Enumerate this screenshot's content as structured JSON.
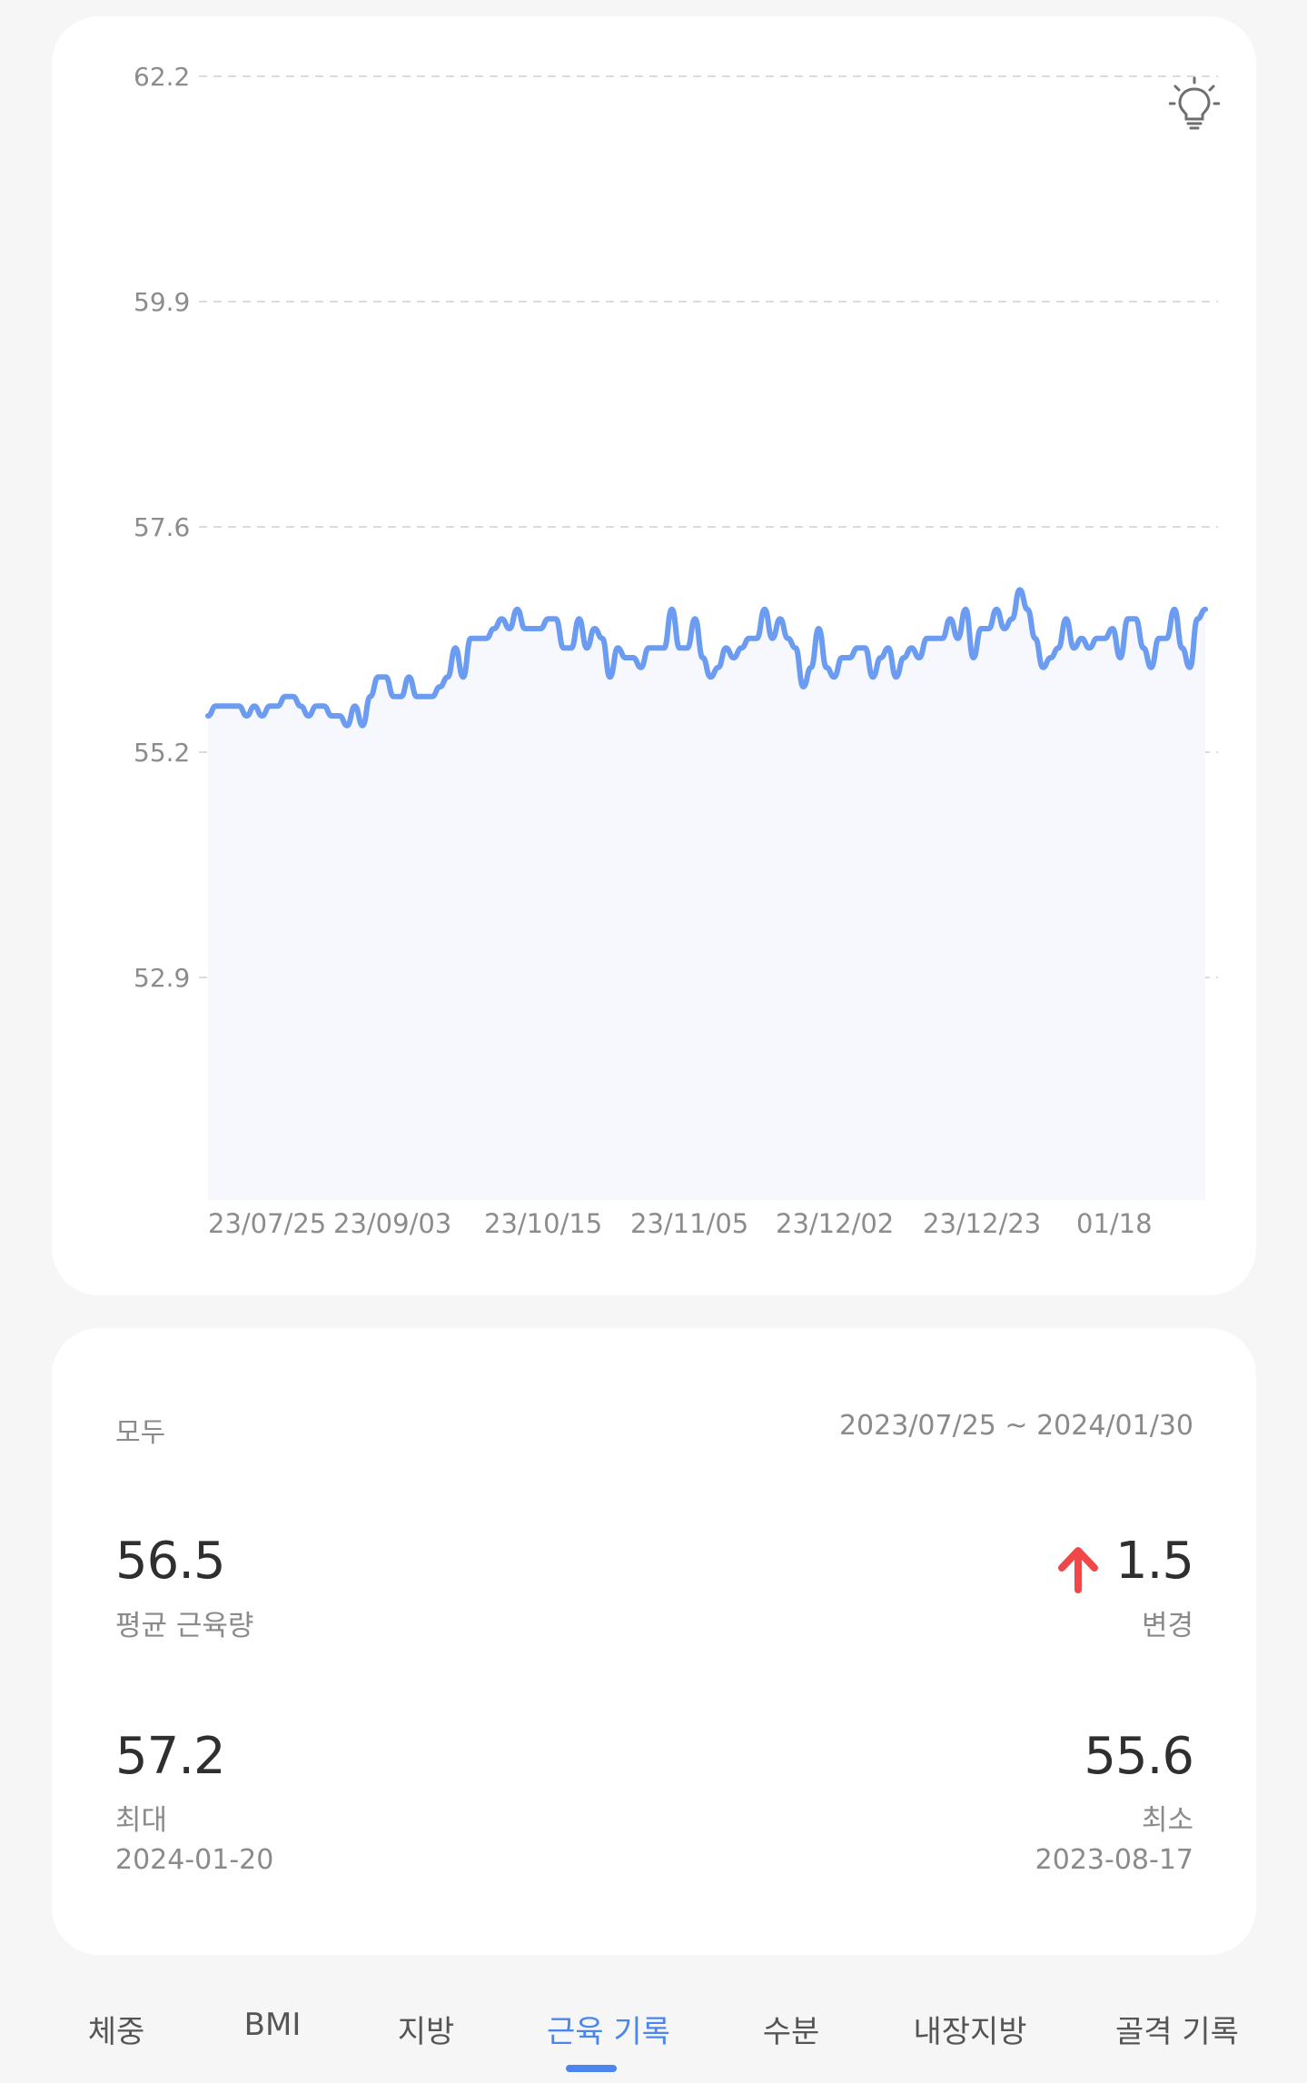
{
  "chart_data": {
    "type": "area",
    "title": "",
    "xlabel": "",
    "ylabel": "",
    "ylim": [
      50.6,
      62.2
    ],
    "y_ticks": [
      "62.2",
      "59.9",
      "57.6",
      "55.2",
      "52.9"
    ],
    "x_tick_labels": [
      "23/07/25",
      "23/09/03",
      "23/10/15",
      "23/11/05",
      "23/12/02",
      "23/12/23",
      "01/18"
    ],
    "series": [
      {
        "color": "#6b9cf2",
        "values": [
          55.6,
          55.7,
          55.7,
          55.7,
          55.7,
          55.6,
          55.7,
          55.6,
          55.7,
          55.7,
          55.8,
          55.8,
          55.7,
          55.6,
          55.7,
          55.7,
          55.6,
          55.6,
          55.5,
          55.7,
          55.5,
          55.8,
          56.0,
          56.0,
          55.8,
          55.8,
          56.0,
          55.8,
          55.8,
          55.8,
          55.9,
          56.0,
          56.3,
          56.0,
          56.4,
          56.4,
          56.4,
          56.5,
          56.6,
          56.5,
          56.7,
          56.5,
          56.5,
          56.5,
          56.6,
          56.6,
          56.3,
          56.3,
          56.6,
          56.3,
          56.5,
          56.4,
          56.0,
          56.3,
          56.2,
          56.2,
          56.1,
          56.3,
          56.3,
          56.3,
          56.7,
          56.3,
          56.3,
          56.6,
          56.2,
          56.0,
          56.1,
          56.3,
          56.2,
          56.3,
          56.4,
          56.4,
          56.7,
          56.4,
          56.6,
          56.4,
          56.3,
          55.9,
          56.1,
          56.5,
          56.1,
          56.0,
          56.2,
          56.2,
          56.3,
          56.3,
          56.0,
          56.2,
          56.3,
          56.0,
          56.2,
          56.3,
          56.2,
          56.4,
          56.4,
          56.4,
          56.6,
          56.4,
          56.7,
          56.2,
          56.5,
          56.5,
          56.7,
          56.5,
          56.6,
          56.9,
          56.7,
          56.4,
          56.1,
          56.2,
          56.3,
          56.6,
          56.3,
          56.4,
          56.3,
          56.4,
          56.4,
          56.5,
          56.2,
          56.6,
          56.6,
          56.3,
          56.1,
          56.4,
          56.4,
          56.7,
          56.3,
          56.1,
          56.6,
          56.7
        ]
      }
    ]
  },
  "stats": {
    "range_label": "모두",
    "date_range": "2023/07/25 ~ 2024/01/30",
    "average": {
      "value": "56.5",
      "label": "평균 근육량"
    },
    "change": {
      "value": "1.5",
      "label": "변경",
      "direction": "up",
      "icon": "arrow-up-icon",
      "color": "#f04848"
    },
    "max": {
      "value": "57.2",
      "label": "최대",
      "date": "2024-01-20"
    },
    "min": {
      "value": "55.6",
      "label": "최소",
      "date": "2023-08-17"
    }
  },
  "icons": {
    "tip": "lightbulb-icon"
  },
  "tabs": [
    {
      "label": "체중",
      "active": false
    },
    {
      "label": "BMI",
      "active": false
    },
    {
      "label": "지방",
      "active": false
    },
    {
      "label": "근육 기록",
      "active": true
    },
    {
      "label": "수분",
      "active": false
    },
    {
      "label": "내장지방",
      "active": false
    },
    {
      "label": "골격 기록",
      "active": false
    }
  ],
  "colors": {
    "accent": "#4a86ee",
    "line": "#6b9cf2",
    "area_fill": "#f6f8fe",
    "background": "#f6f6f6",
    "card": "#ffffff"
  }
}
